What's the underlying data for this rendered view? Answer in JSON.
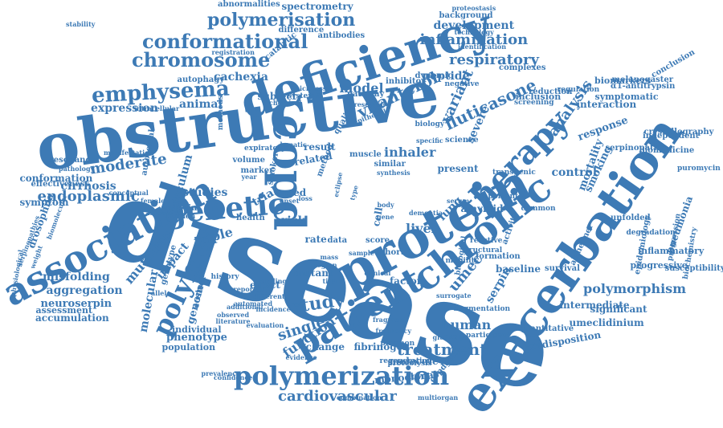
{
  "colors": {
    "word": "#3d7ab5",
    "background": "#ffffff"
  },
  "words": [
    "disease",
    "obstructive",
    "exacerbation",
    "deficiency",
    "protein",
    "copd",
    "chronic",
    "association",
    "patient",
    "therapy",
    "genetic",
    "polymerization",
    "polymer",
    "emphysema",
    "conformational",
    "chromosome",
    "polymerisation",
    "study",
    "treatment",
    "cardiovascular",
    "inflammation",
    "respiratory",
    "fluticasone",
    "vilanterol",
    "analysis",
    "variant",
    "human",
    "single",
    "endoplasmic",
    "moderate",
    "mutation",
    "umec",
    "function",
    "polymorphism",
    "severe",
    "model",
    "inhaler",
    "lung",
    "liver",
    "serpin",
    "development",
    "spectrometry",
    "abnormalities",
    "cachexia",
    "expression",
    "animal",
    "subject",
    "peptide",
    "misfolding",
    "aggregation",
    "neuroserpin",
    "accumulation",
    "assessment",
    "cirrhosis",
    "conformation",
    "drosophila",
    "symptom",
    "reticulum",
    "studies",
    "mortality",
    "smoking",
    "control",
    "response",
    "interaction",
    "baseline",
    "intermediate",
    "umeclidinium",
    "predisposition",
    "fibrinogen",
    "monoclonal",
    "phenotype",
    "population",
    "individual",
    "genome",
    "molecular",
    "impact",
    "triple",
    "molecule",
    "factor",
    "change",
    "amyloid",
    "risk",
    "trial",
    "cell",
    "result",
    "related",
    "health",
    "rate",
    "data",
    "score",
    "cohort",
    "mutant",
    "effect",
    "aged",
    "significant",
    "progressive",
    "inflammatory",
    "pneumonia",
    "alzheimer",
    "unfolded",
    "biomarkers",
    "symptomatic",
    "inclusion",
    "independent",
    "biomedicine",
    "melanogaster",
    "α1-antitrypsin",
    "antibodies",
    "difference",
    "background",
    "proteostasis",
    "catalytic",
    "autophagy",
    "registration",
    "intracellular",
    "reduction",
    "regulation",
    "screening",
    "autosomal",
    "methods",
    "dynamic",
    "inhibitor",
    "pathway",
    "research",
    "negative",
    "systemic",
    "chemical",
    "thickness",
    "epithelial",
    "quality",
    "science",
    "biology",
    "dementia",
    "survival",
    "susceptibility",
    "epidemiology",
    "degradation",
    "serpinopathy",
    "crystallography",
    "conclusion",
    "complexes",
    "technology",
    "identification",
    "stability",
    "endpoint",
    "associated",
    "eosinophil",
    "genotype",
    "history",
    "volume",
    "marker",
    "expiratory",
    "resonance",
    "effectiveness",
    "pathology",
    "weight",
    "allele",
    "female",
    "present",
    "similar",
    "synthesis",
    "muscle",
    "novel",
    "regeneration",
    "proteolysis",
    "combination",
    "multiorgan",
    "prevalence",
    "confidence",
    "fragment",
    "plasmon",
    "participant",
    "augmentation",
    "quantitative",
    "copdgene",
    "formation",
    "activity",
    "reactive",
    "structural",
    "mobility",
    "biological",
    "important",
    "common",
    "transgenic",
    "biochemistry",
    "puromycin",
    "progression",
    "surrogate",
    "frequency",
    "evidence",
    "burden",
    "year",
    "loss",
    "body",
    "physiological",
    "conceptual",
    "manifestation",
    "serpinopathies",
    "biomolecular",
    "incidence",
    "reported",
    "binding",
    "additional",
    "different",
    "literature",
    "observed",
    "automated",
    "evaluation",
    "clinical",
    "gene",
    "sample",
    "tissue",
    "smoker",
    "onset",
    "method",
    "region",
    "type",
    "mass",
    "eclipse",
    "specific",
    "hepatic",
    "serum",
    "glu342lys",
    "range"
  ]
}
